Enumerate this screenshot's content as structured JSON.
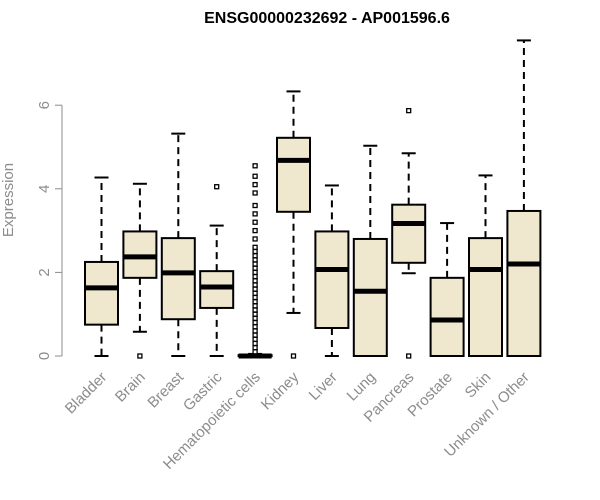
{
  "chart_data": {
    "type": "boxplot",
    "title": "ENSG00000232692 - AP001596.6",
    "xlabel": "",
    "ylabel": "Expression",
    "ylim": [
      0,
      7.6
    ],
    "yticks": [
      0,
      2,
      4,
      6
    ],
    "grid": false,
    "box_fill": "#efe8cf",
    "line_color": "#000000",
    "categories": [
      "Bladder",
      "Brain",
      "Breast",
      "Gastric",
      "Hematopoietic cells",
      "Kidney",
      "Liver",
      "Lung",
      "Pancreas",
      "Prostate",
      "Skin",
      "Unknown / Other"
    ],
    "boxes": [
      {
        "q1": 0.75,
        "median": 1.63,
        "q3": 2.25,
        "whisker_low": 0.0,
        "whisker_high": 4.27,
        "outliers": []
      },
      {
        "q1": 1.87,
        "median": 2.37,
        "q3": 2.98,
        "whisker_low": 0.58,
        "whisker_high": 4.12,
        "outliers": [
          0.0
        ]
      },
      {
        "q1": 0.88,
        "median": 1.99,
        "q3": 2.82,
        "whisker_low": 0.0,
        "whisker_high": 5.32,
        "outliers": []
      },
      {
        "q1": 1.15,
        "median": 1.65,
        "q3": 2.03,
        "whisker_low": 0.0,
        "whisker_high": 3.12,
        "outliers": [
          4.05
        ]
      },
      {
        "q1": 0.0,
        "median": 0.0,
        "q3": 0.02,
        "whisker_low": 0.0,
        "whisker_high": 0.05,
        "outliers": [
          0.1,
          0.2,
          0.3,
          0.4,
          0.5,
          0.6,
          0.7,
          0.8,
          0.9,
          1.0,
          1.1,
          1.2,
          1.3,
          1.4,
          1.5,
          1.6,
          1.7,
          1.8,
          1.9,
          2.0,
          2.1,
          2.2,
          2.3,
          2.4,
          2.5,
          2.6,
          2.8,
          3.0,
          3.2,
          3.4,
          3.6,
          3.9,
          4.1,
          4.3,
          4.55
        ]
      },
      {
        "q1": 3.45,
        "median": 4.68,
        "q3": 5.22,
        "whisker_low": 1.03,
        "whisker_high": 6.33,
        "outliers": [
          0.0
        ]
      },
      {
        "q1": 0.67,
        "median": 2.07,
        "q3": 2.98,
        "whisker_low": 0.0,
        "whisker_high": 4.08,
        "outliers": []
      },
      {
        "q1": 0.0,
        "median": 1.55,
        "q3": 2.8,
        "whisker_low": 0.0,
        "whisker_high": 5.03,
        "outliers": []
      },
      {
        "q1": 2.23,
        "median": 3.17,
        "q3": 3.62,
        "whisker_low": 1.98,
        "whisker_high": 4.85,
        "outliers": [
          5.87,
          0.0
        ]
      },
      {
        "q1": 0.0,
        "median": 0.86,
        "q3": 1.87,
        "whisker_low": 0.0,
        "whisker_high": 3.18,
        "outliers": []
      },
      {
        "q1": 0.0,
        "median": 2.07,
        "q3": 2.82,
        "whisker_low": 0.0,
        "whisker_high": 4.32,
        "outliers": []
      },
      {
        "q1": 0.0,
        "median": 2.2,
        "q3": 3.47,
        "whisker_low": 0.0,
        "whisker_high": 7.55,
        "outliers": []
      }
    ]
  }
}
